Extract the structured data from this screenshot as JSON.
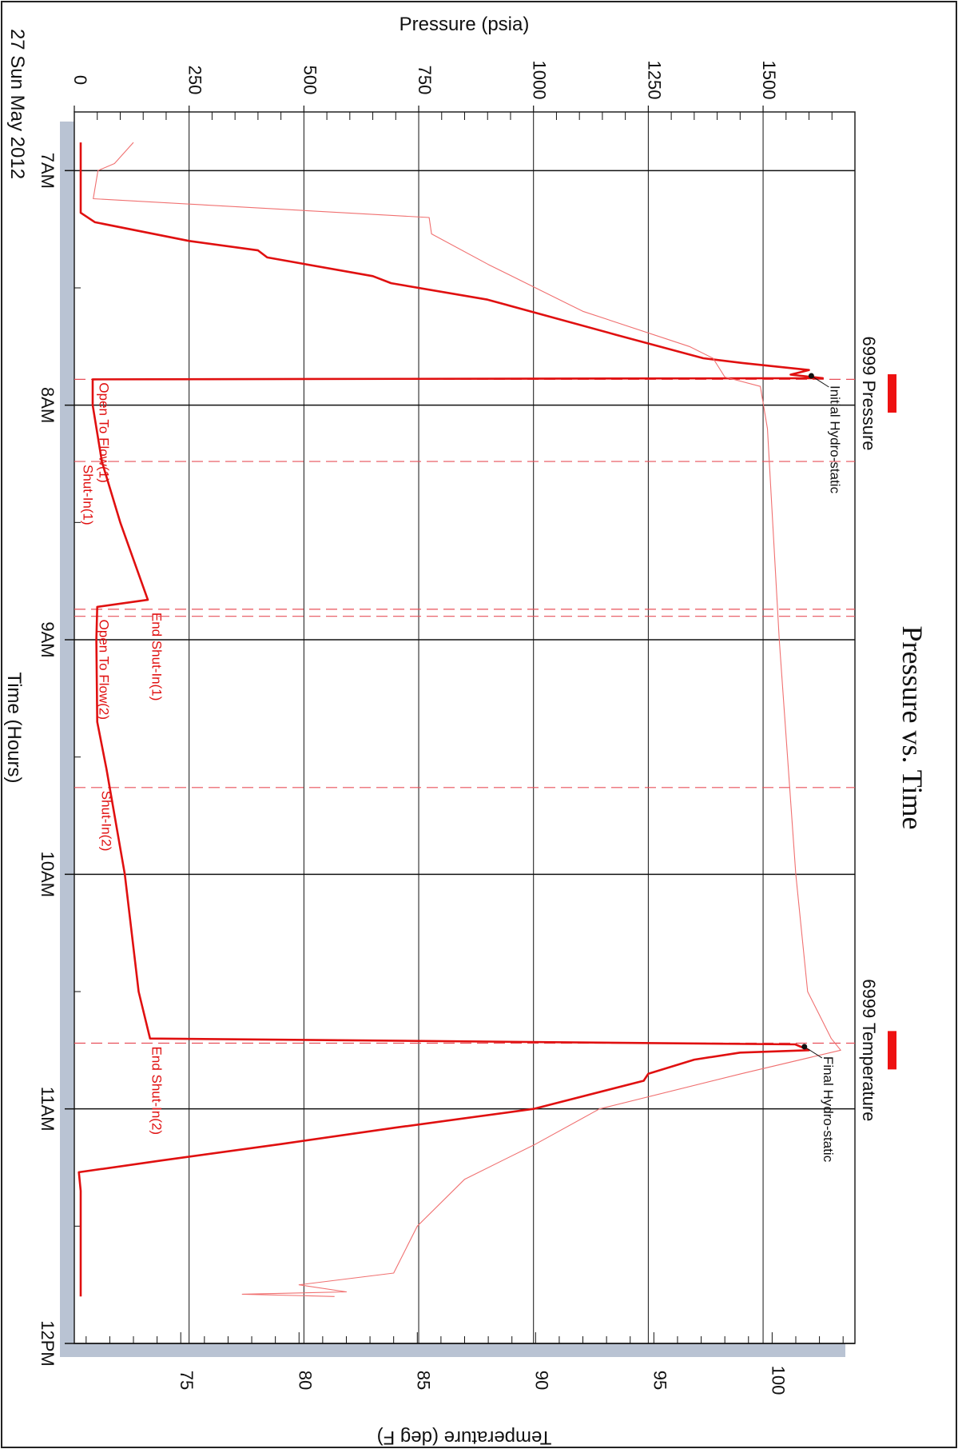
{
  "chart_data": {
    "type": "line",
    "title": "Pressure vs. Time",
    "date_label": "27 Sun May 2012",
    "xlabel": "Time (Hours)",
    "ylabel": "Pressure (psia)",
    "y2label": "Temperature (deg F)",
    "x_ticks": [
      "7AM",
      "8AM",
      "9AM",
      "10AM",
      "11AM",
      "12PM"
    ],
    "x_range_hours": [
      6.75,
      12.0
    ],
    "ylim": [
      0,
      1700
    ],
    "y_ticks": [
      0,
      250,
      500,
      750,
      1000,
      1250,
      1500
    ],
    "y2lim": [
      70.5,
      103.5
    ],
    "y2_ticks": [
      75,
      80,
      85,
      90,
      95,
      100
    ],
    "grid": true,
    "legend": [
      {
        "name": "6999 Pressure",
        "color": "#ee1111"
      },
      {
        "name": "6999 Temperature",
        "color": "#ee1111"
      }
    ],
    "series": [
      {
        "name": "6999 Pressure",
        "axis": "pressure",
        "color": "#e01010",
        "points": [
          [
            6.88,
            14
          ],
          [
            7.18,
            14
          ],
          [
            7.22,
            45
          ],
          [
            7.3,
            250
          ],
          [
            7.34,
            400
          ],
          [
            7.37,
            420
          ],
          [
            7.45,
            650
          ],
          [
            7.48,
            690
          ],
          [
            7.55,
            900
          ],
          [
            7.7,
            1180
          ],
          [
            7.8,
            1370
          ],
          [
            7.82,
            1455
          ],
          [
            7.85,
            1600
          ],
          [
            7.87,
            1560
          ],
          [
            7.885,
            1630
          ],
          [
            7.89,
            40
          ],
          [
            8.0,
            40
          ],
          [
            8.24,
            60
          ],
          [
            8.5,
            100
          ],
          [
            8.83,
            160
          ],
          [
            8.86,
            50
          ],
          [
            9.0,
            48
          ],
          [
            9.35,
            50
          ],
          [
            9.55,
            70
          ],
          [
            10.0,
            110
          ],
          [
            10.5,
            140
          ],
          [
            10.7,
            165
          ],
          [
            10.725,
            1570
          ],
          [
            10.75,
            1600
          ],
          [
            10.76,
            1450
          ],
          [
            10.79,
            1350
          ],
          [
            10.85,
            1250
          ],
          [
            10.88,
            1240
          ],
          [
            11.0,
            1000
          ],
          [
            11.08,
            700
          ],
          [
            11.15,
            450
          ],
          [
            11.22,
            190
          ],
          [
            11.27,
            10
          ],
          [
            11.35,
            14
          ],
          [
            11.8,
            14
          ]
        ]
      },
      {
        "name": "6999 Temperature",
        "axis": "temperature",
        "color": "#f07070",
        "points": [
          [
            6.88,
            73.0
          ],
          [
            6.97,
            72.2
          ],
          [
            7.0,
            71.5
          ],
          [
            7.12,
            71.3
          ],
          [
            7.2,
            85.5
          ],
          [
            7.27,
            85.6
          ],
          [
            7.4,
            88.0
          ],
          [
            7.6,
            92.0
          ],
          [
            7.75,
            96.5
          ],
          [
            7.8,
            97.5
          ],
          [
            7.88,
            98.0
          ],
          [
            7.92,
            99.5
          ],
          [
            8.1,
            99.8
          ],
          [
            9.0,
            100.3
          ],
          [
            10.0,
            101.0
          ],
          [
            10.5,
            101.5
          ],
          [
            10.7,
            102.5
          ],
          [
            10.75,
            102.9
          ],
          [
            10.85,
            98.7
          ],
          [
            11.0,
            92.7
          ],
          [
            11.15,
            90.0
          ],
          [
            11.3,
            87.0
          ],
          [
            11.5,
            85.0
          ],
          [
            11.7,
            84.0
          ],
          [
            11.75,
            80.0
          ],
          [
            11.78,
            82.0
          ],
          [
            11.79,
            77.6
          ],
          [
            11.8,
            81.5
          ]
        ]
      }
    ],
    "annotations": [
      {
        "text": "Initial Hydro-static",
        "time": 7.875,
        "pressure": 1605
      },
      {
        "text": "Final Hydro-static",
        "time": 10.735,
        "pressure": 1590
      }
    ],
    "events": [
      {
        "text": "Open To Flow(1)",
        "time": 7.89,
        "pressure": 55
      },
      {
        "text": "Shut-In(1)",
        "time": 8.24,
        "pressure": 20
      },
      {
        "text": "End Shut-In(1)",
        "time": 8.87,
        "pressure": 170
      },
      {
        "text": "Open To Flow(2)",
        "time": 8.9,
        "pressure": 55
      },
      {
        "text": "Shut-In(2)",
        "time": 9.63,
        "pressure": 60
      },
      {
        "text": "End Shut-In(2)",
        "time": 10.72,
        "pressure": 170
      }
    ]
  }
}
